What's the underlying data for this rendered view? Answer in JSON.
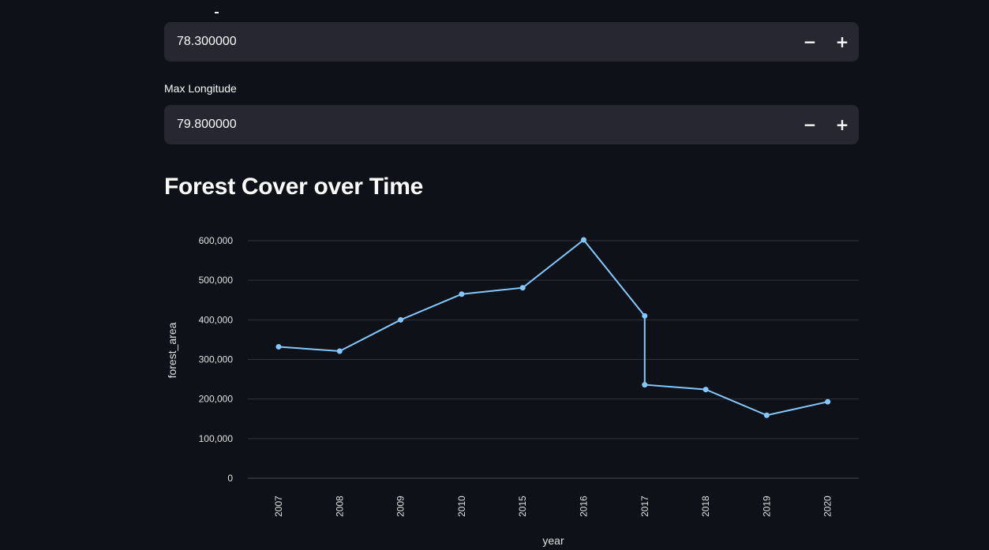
{
  "inputs": {
    "min_longitude": {
      "value": "78.300000",
      "minus": "−",
      "plus": "+"
    },
    "max_longitude": {
      "label": "Max Longitude",
      "value": "79.800000",
      "minus": "−",
      "plus": "+"
    }
  },
  "section": {
    "title": "Forest Cover over Time"
  },
  "colors": {
    "line": "#83c9ff",
    "grid": "#31333f",
    "background": "#0e1117",
    "input_bg": "#262730"
  },
  "chart_data": {
    "type": "line",
    "xlabel": "year",
    "ylabel": "forest_area",
    "categories": [
      "2007",
      "2008",
      "2009",
      "2010",
      "2015",
      "2016",
      "2017",
      "2018",
      "2019",
      "2020"
    ],
    "points": [
      {
        "x": "2007",
        "y": 332000
      },
      {
        "x": "2008",
        "y": 321000
      },
      {
        "x": "2009",
        "y": 400000
      },
      {
        "x": "2010",
        "y": 465000
      },
      {
        "x": "2015",
        "y": 481000
      },
      {
        "x": "2016",
        "y": 602000
      },
      {
        "x": "2017",
        "y": 410000
      },
      {
        "x": "2017",
        "y": 236000
      },
      {
        "x": "2018",
        "y": 224000
      },
      {
        "x": "2019",
        "y": 159000
      },
      {
        "x": "2020",
        "y": 193000
      }
    ],
    "yticks": [
      0,
      100000,
      200000,
      300000,
      400000,
      500000,
      600000
    ],
    "ytick_labels": [
      "0",
      "100,000",
      "200,000",
      "300,000",
      "400,000",
      "500,000",
      "600,000"
    ],
    "ylim": [
      0,
      600000
    ],
    "grid": true,
    "x_tick_rotation": -90
  }
}
